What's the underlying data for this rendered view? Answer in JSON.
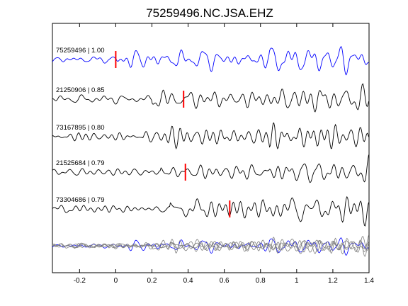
{
  "chart_data": {
    "type": "line",
    "title": "75259496.NC.JSA.EHZ",
    "xlabel": "",
    "ylabel": "",
    "xlim": [
      -0.35,
      1.4
    ],
    "x_ticks": [
      -0.2,
      0,
      0.2,
      0.4,
      0.6,
      0.8,
      1.0,
      1.2,
      1.4
    ],
    "x_tick_labels": [
      "-0.2",
      "0",
      "0.2",
      "0.4",
      "0.6",
      "0.8",
      "1",
      "1.2",
      "1.4"
    ],
    "y_ticks_shown": false,
    "grid": false,
    "legend": "none",
    "traces": [
      {
        "id": "75259496",
        "correlation": "1.00",
        "label": "75259496 | 1.00",
        "color": "#0000ff",
        "pick_time": 0.0
      },
      {
        "id": "21250906",
        "correlation": "0.85",
        "label": "21250906 | 0.85",
        "color": "#000000",
        "pick_time": 0.375
      },
      {
        "id": "73167895",
        "correlation": "0.80",
        "label": "73167895 | 0.80",
        "color": "#000000",
        "pick_time": null
      },
      {
        "id": "21525684",
        "correlation": "0.79",
        "label": "21525684 | 0.79",
        "color": "#000000",
        "pick_time": 0.385
      },
      {
        "id": "73304686",
        "correlation": "0.79",
        "label": "73304686 | 0.79",
        "color": "#000000",
        "pick_time": 0.63
      }
    ],
    "overlay": {
      "description_color_reference": "#0000ff",
      "description_color_others": "#808080"
    },
    "pick_color": "#ff0000"
  }
}
